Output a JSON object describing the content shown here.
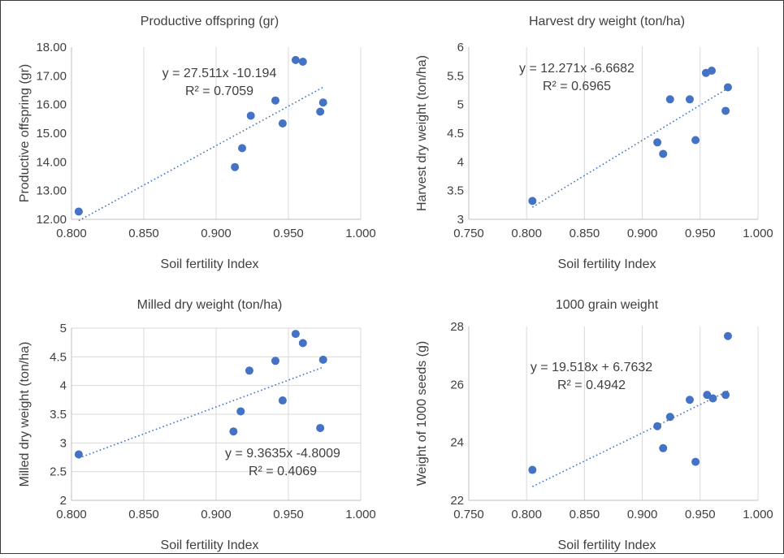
{
  "chart_data": [
    {
      "type": "scatter",
      "title": "Productive offspring (gr)",
      "xlabel": "Soil fertility Index",
      "ylabel": "Productive offspring (gr)",
      "xlim": [
        0.8,
        1.0
      ],
      "ylim": [
        12,
        18
      ],
      "x_ticks": [
        0.8,
        0.85,
        0.9,
        0.95,
        1.0
      ],
      "x_tick_labels": [
        "0.800",
        "0.850",
        "0.900",
        "0.950",
        "1.000"
      ],
      "y_ticks": [
        12,
        13,
        14,
        15,
        16,
        17,
        18
      ],
      "y_tick_labels": [
        "12.00",
        "13.00",
        "14.00",
        "15.00",
        "16.00",
        "17.00",
        "18.00"
      ],
      "grid": "vertical",
      "points": [
        {
          "x": 0.805,
          "y": 12.27
        },
        {
          "x": 0.913,
          "y": 13.82
        },
        {
          "x": 0.918,
          "y": 14.48
        },
        {
          "x": 0.924,
          "y": 15.61
        },
        {
          "x": 0.941,
          "y": 16.14
        },
        {
          "x": 0.946,
          "y": 15.34
        },
        {
          "x": 0.955,
          "y": 17.55
        },
        {
          "x": 0.96,
          "y": 17.49
        },
        {
          "x": 0.972,
          "y": 15.75
        },
        {
          "x": 0.974,
          "y": 16.07
        }
      ],
      "trendline": {
        "slope": 27.511,
        "intercept": -10.194,
        "x_range": [
          0.805,
          0.974
        ]
      },
      "equation_text": "y = 27.511x -10.194",
      "r2_text": "R² = 0.7059"
    },
    {
      "type": "scatter",
      "title": "Harvest dry weight (ton/ha)",
      "xlabel": "Soil fertility Index",
      "ylabel": "Harvest dry weight (ton/ha)",
      "xlim": [
        0.75,
        1.0
      ],
      "ylim": [
        3,
        6
      ],
      "x_ticks": [
        0.75,
        0.8,
        0.85,
        0.9,
        0.95,
        1.0
      ],
      "x_tick_labels": [
        "0.750",
        "0.800",
        "0.850",
        "0.900",
        "0.950",
        "1.000"
      ],
      "y_ticks": [
        3,
        3.5,
        4,
        4.5,
        5,
        5.5,
        6
      ],
      "y_tick_labels": [
        "3",
        "3.5",
        "4",
        "4.5",
        "5",
        "5.5",
        "6"
      ],
      "grid": "vertical",
      "points": [
        {
          "x": 0.805,
          "y": 3.32
        },
        {
          "x": 0.913,
          "y": 4.34
        },
        {
          "x": 0.918,
          "y": 4.14
        },
        {
          "x": 0.924,
          "y": 5.09
        },
        {
          "x": 0.941,
          "y": 5.09
        },
        {
          "x": 0.946,
          "y": 4.38
        },
        {
          "x": 0.955,
          "y": 5.55
        },
        {
          "x": 0.96,
          "y": 5.59
        },
        {
          "x": 0.972,
          "y": 4.89
        },
        {
          "x": 0.974,
          "y": 5.3
        }
      ],
      "trendline": {
        "slope": 12.271,
        "intercept": -6.6682,
        "x_range": [
          0.805,
          0.974
        ]
      },
      "equation_text": "y = 12.271x -6.6682",
      "r2_text": "R² = 0.6965"
    },
    {
      "type": "scatter",
      "title": "Milled dry weight (ton/ha)",
      "xlabel": "Soil fertility Index",
      "ylabel": "Milled dry weight (ton/ha)",
      "xlim": [
        0.8,
        1.0
      ],
      "ylim": [
        2,
        5
      ],
      "x_ticks": [
        0.8,
        0.85,
        0.9,
        0.95,
        1.0
      ],
      "x_tick_labels": [
        "0.800",
        "0.850",
        "0.900",
        "0.950",
        "1.000"
      ],
      "y_ticks": [
        2,
        2.5,
        3,
        3.5,
        4,
        4.5,
        5
      ],
      "y_tick_labels": [
        "2",
        "2.5",
        "3",
        "3.5",
        "4",
        "4.5",
        "5"
      ],
      "grid": "both",
      "points": [
        {
          "x": 0.805,
          "y": 2.8
        },
        {
          "x": 0.912,
          "y": 3.2
        },
        {
          "x": 0.917,
          "y": 3.55
        },
        {
          "x": 0.923,
          "y": 4.26
        },
        {
          "x": 0.941,
          "y": 4.43
        },
        {
          "x": 0.946,
          "y": 3.74
        },
        {
          "x": 0.955,
          "y": 4.9
        },
        {
          "x": 0.96,
          "y": 4.74
        },
        {
          "x": 0.972,
          "y": 3.26
        },
        {
          "x": 0.974,
          "y": 4.45
        }
      ],
      "trendline": {
        "slope": 9.3635,
        "intercept": -4.8009,
        "x_range": [
          0.805,
          0.974
        ]
      },
      "equation_text": "y = 9.3635x -4.8009",
      "r2_text": "R² = 0.4069"
    },
    {
      "type": "scatter",
      "title": "1000 grain weight",
      "xlabel": "Soil fertility Index",
      "ylabel": "Weight of 1000 seeds (g)",
      "xlim": [
        0.75,
        1.0
      ],
      "ylim": [
        22,
        28
      ],
      "x_ticks": [
        0.75,
        0.8,
        0.85,
        0.9,
        0.95,
        1.0
      ],
      "x_tick_labels": [
        "0.750",
        "0.800",
        "0.850",
        "0.900",
        "0.950",
        "1.000"
      ],
      "y_ticks": [
        22,
        24,
        26,
        28
      ],
      "y_tick_labels": [
        "22",
        "24",
        "26",
        "28"
      ],
      "grid": "vertical",
      "points": [
        {
          "x": 0.805,
          "y": 23.05
        },
        {
          "x": 0.913,
          "y": 24.56
        },
        {
          "x": 0.918,
          "y": 23.8
        },
        {
          "x": 0.924,
          "y": 24.88
        },
        {
          "x": 0.941,
          "y": 25.47
        },
        {
          "x": 0.946,
          "y": 23.33
        },
        {
          "x": 0.956,
          "y": 25.64
        },
        {
          "x": 0.961,
          "y": 25.52
        },
        {
          "x": 0.972,
          "y": 25.64
        },
        {
          "x": 0.974,
          "y": 27.67
        }
      ],
      "trendline": {
        "slope": 19.518,
        "intercept": 6.7632,
        "x_range": [
          0.805,
          0.974
        ]
      },
      "equation_text": "y = 19.518x + 6.7632",
      "r2_text": "R² = 0.4942"
    }
  ]
}
